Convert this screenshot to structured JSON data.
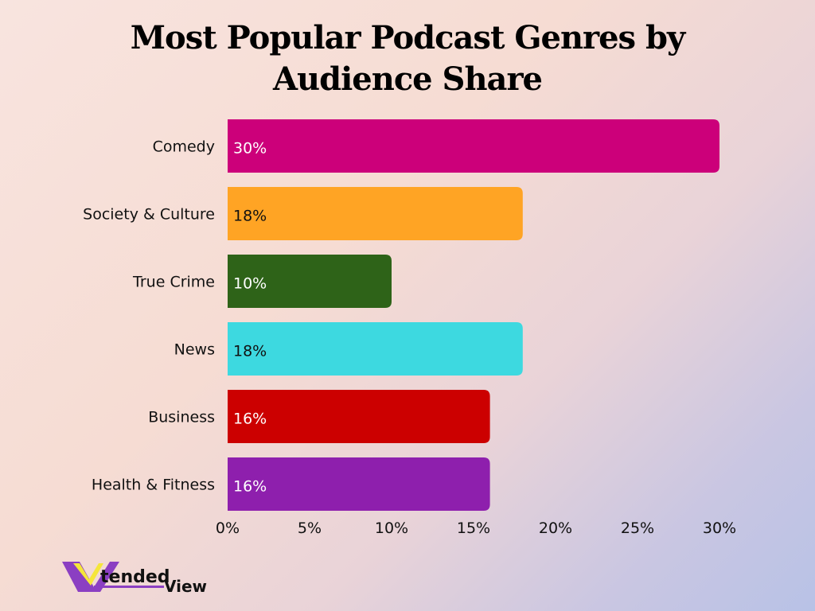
{
  "chart_data": {
    "type": "bar",
    "orientation": "horizontal",
    "title": "Most Popular Podcast Genres by Audience Share",
    "categories": [
      "Comedy",
      "Society & Culture",
      "True Crime",
      "News",
      "Business",
      "Health & Fitness"
    ],
    "values": [
      30,
      18,
      10,
      18,
      16,
      16
    ],
    "data_labels": [
      "30%",
      "18%",
      "10%",
      "18%",
      "16%",
      "16%"
    ],
    "colors": [
      "#cc007a",
      "#ffa424",
      "#2e6318",
      "#3dd9e0",
      "#cc0000",
      "#8e1fad"
    ],
    "label_colors": [
      "#ffffff",
      "#111111",
      "#ffffff",
      "#111111",
      "#ffffff",
      "#ffffff"
    ],
    "xlim": [
      0,
      30
    ],
    "x_ticks": [
      0,
      5,
      10,
      15,
      20,
      25,
      30
    ],
    "x_tick_labels": [
      "0%",
      "5%",
      "10%",
      "15%",
      "20%",
      "25%",
      "30%"
    ],
    "xlabel": "",
    "ylabel": "",
    "grid": false,
    "legend": "none"
  },
  "logo": {
    "text": "XtendedView",
    "colors": {
      "purple": "#8b3fc2",
      "yellow": "#f5e63a"
    }
  }
}
